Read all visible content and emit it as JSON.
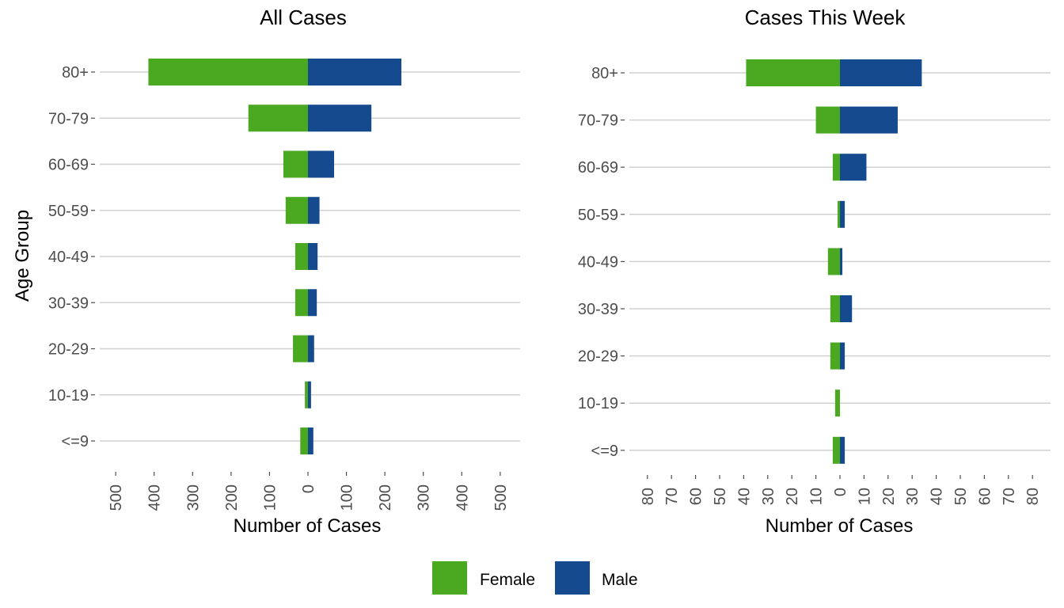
{
  "chart_data": [
    {
      "type": "bar",
      "orientation": "horizontal-diverging",
      "title": "All Cases",
      "xlabel": "Number of Cases",
      "ylabel": "Age Group",
      "categories": [
        "<=9",
        "10-19",
        "20-29",
        "30-39",
        "40-49",
        "50-59",
        "60-69",
        "70-79",
        "80+"
      ],
      "series": [
        {
          "name": "Female",
          "values": [
            20,
            8,
            39,
            33,
            33,
            58,
            64,
            155,
            415
          ]
        },
        {
          "name": "Male",
          "values": [
            14,
            8,
            16,
            23,
            25,
            30,
            68,
            165,
            243
          ]
        }
      ],
      "xlim": [
        -500,
        500
      ],
      "xticks": [
        -500,
        -400,
        -300,
        -200,
        -100,
        0,
        100,
        200,
        300,
        400,
        500
      ],
      "xtick_labels": [
        "500",
        "400",
        "300",
        "200",
        "100",
        "0",
        "100",
        "200",
        "300",
        "400",
        "500"
      ],
      "grid": "horizontal"
    },
    {
      "type": "bar",
      "orientation": "horizontal-diverging",
      "title": "Cases This Week",
      "xlabel": "Number of Cases",
      "ylabel": "",
      "categories": [
        "<=9",
        "10-19",
        "20-29",
        "30-39",
        "40-49",
        "50-59",
        "60-69",
        "70-79",
        "80+"
      ],
      "series": [
        {
          "name": "Female",
          "values": [
            3,
            2,
            4,
            4,
            5,
            1,
            3,
            10,
            39
          ]
        },
        {
          "name": "Male",
          "values": [
            2,
            0,
            2,
            5,
            1,
            2,
            11,
            24,
            34
          ]
        }
      ],
      "xlim": [
        -80,
        80
      ],
      "xticks": [
        -80,
        -70,
        -60,
        -50,
        -40,
        -30,
        -20,
        -10,
        0,
        10,
        20,
        30,
        40,
        50,
        60,
        70,
        80
      ],
      "xtick_labels": [
        "80",
        "70",
        "60",
        "50",
        "40",
        "30",
        "20",
        "10",
        "0",
        "10",
        "20",
        "30",
        "40",
        "50",
        "60",
        "70",
        "80"
      ],
      "grid": "horizontal"
    }
  ],
  "legend": {
    "position": "bottom",
    "items": [
      {
        "label": "Female",
        "color": "#4aa821"
      },
      {
        "label": "Male",
        "color": "#164a8f"
      }
    ]
  },
  "colors": {
    "female": "#4aa821",
    "male": "#164a8f",
    "grid": "#d0d0d0"
  }
}
